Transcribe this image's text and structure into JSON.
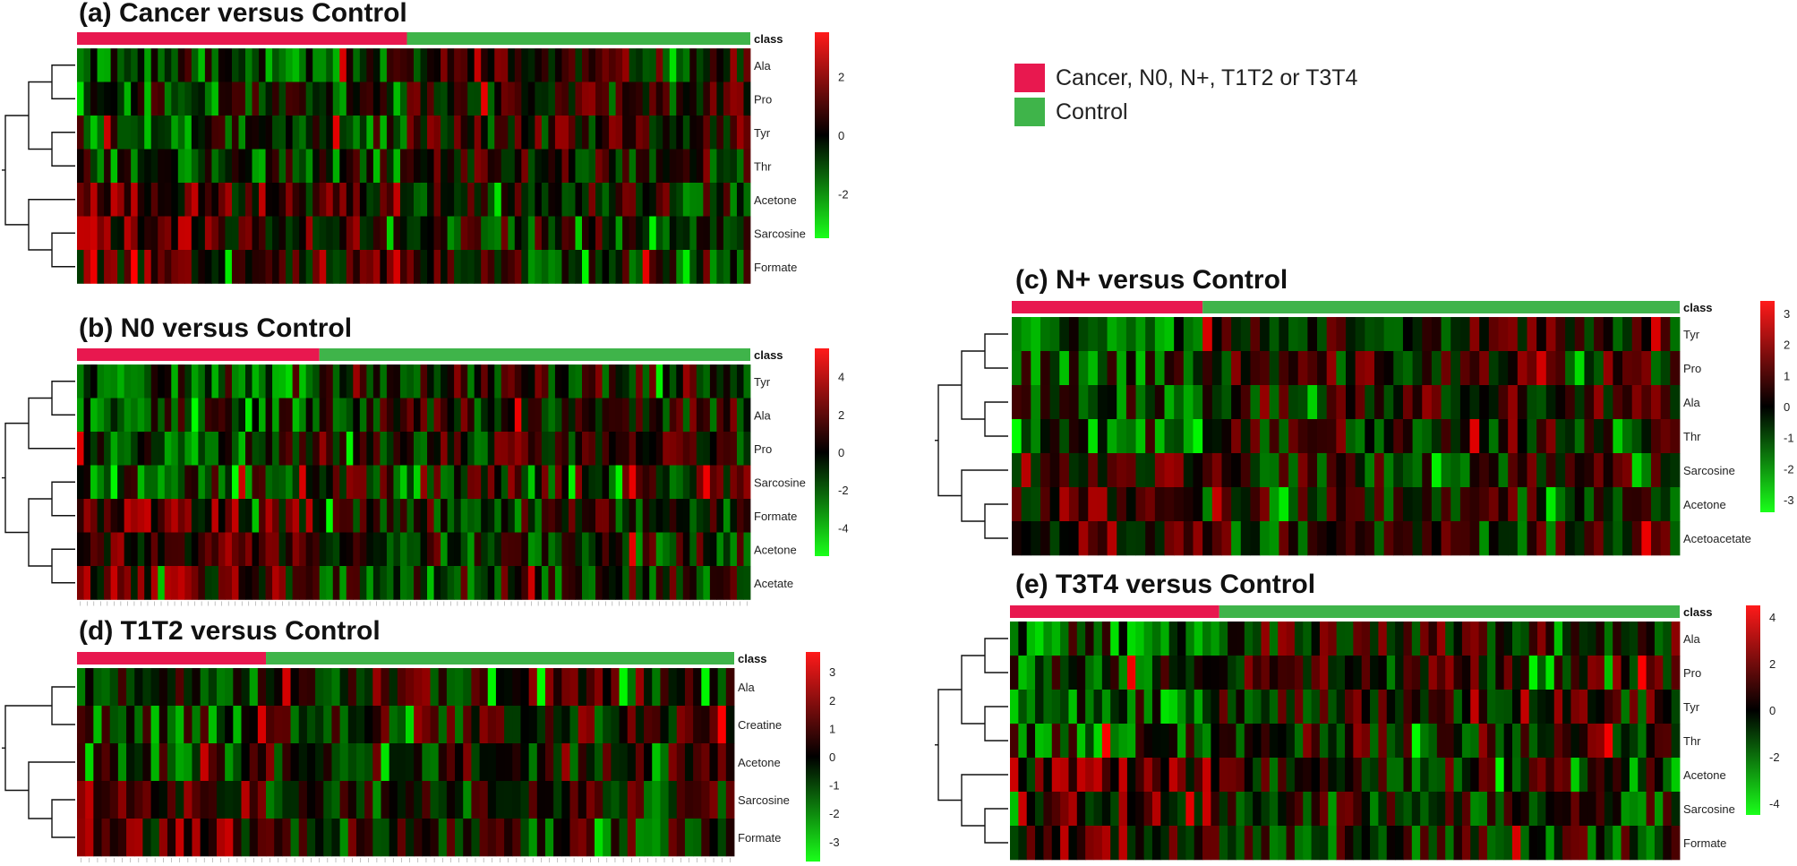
{
  "colors": {
    "cancer": "#e8184f",
    "control": "#3fb44a",
    "high": "#ff1a1a",
    "mid": "#000000",
    "low": "#1aff1a"
  },
  "legend": {
    "items": [
      {
        "label": "Cancer, N0, N+, T1T2 or T3T4",
        "color": "#e8184f"
      },
      {
        "label": "Control",
        "color": "#3fb44a"
      }
    ]
  },
  "chart_data": [
    {
      "type": "heatmap",
      "title": "(a) Cancer versus Control",
      "annotation_label": "class",
      "rows": [
        "Ala",
        "Pro",
        "Tyr",
        "Thr",
        "Acetone",
        "Sarcosine",
        "Formate"
      ],
      "n_columns": 100,
      "n_cancer_columns": 49,
      "color_scale_ticks": [
        "2",
        "0",
        "-2"
      ],
      "color_range": [
        -3.5,
        3.5
      ]
    },
    {
      "type": "heatmap",
      "title": "(b) N0 versus Control",
      "annotation_label": "class",
      "rows": [
        "Tyr",
        "Ala",
        "Pro",
        "Sarcosine",
        "Formate",
        "Acetone",
        "Acetate"
      ],
      "n_columns": 100,
      "n_cancer_columns": 36,
      "color_scale_ticks": [
        "4",
        "2",
        "0",
        "-2",
        "-4"
      ],
      "color_range": [
        -5.5,
        5.5
      ]
    },
    {
      "type": "heatmap",
      "title": "(c) N+ versus Control",
      "annotation_label": "class",
      "rows": [
        "Tyr",
        "Pro",
        "Ala",
        "Thr",
        "Sarcosine",
        "Acetone",
        "Acetoacetate"
      ],
      "n_columns": 70,
      "n_cancer_columns": 20,
      "color_scale_ticks": [
        "3",
        "2",
        "1",
        "0",
        "-1",
        "-2",
        "-3"
      ],
      "color_range": [
        -3.4,
        3.4
      ]
    },
    {
      "type": "heatmap",
      "title": "(d) T1T2 versus Control",
      "annotation_label": "class",
      "rows": [
        "Ala",
        "Creatine",
        "Acetone",
        "Sarcosine",
        "Formate"
      ],
      "n_columns": 80,
      "n_cancer_columns": 23,
      "color_scale_ticks": [
        "3",
        "2",
        "1",
        "0",
        "-1",
        "-2",
        "-3"
      ],
      "color_range": [
        -3.7,
        3.7
      ]
    },
    {
      "type": "heatmap",
      "title": "(e) T3T4 versus Control",
      "annotation_label": "class",
      "rows": [
        "Ala",
        "Pro",
        "Tyr",
        "Thr",
        "Acetone",
        "Sarcosine",
        "Formate"
      ],
      "n_columns": 80,
      "n_cancer_columns": 25,
      "color_scale_ticks": [
        "4",
        "2",
        "0",
        "-2",
        "-4"
      ],
      "color_range": [
        -4.5,
        4.5
      ]
    }
  ]
}
